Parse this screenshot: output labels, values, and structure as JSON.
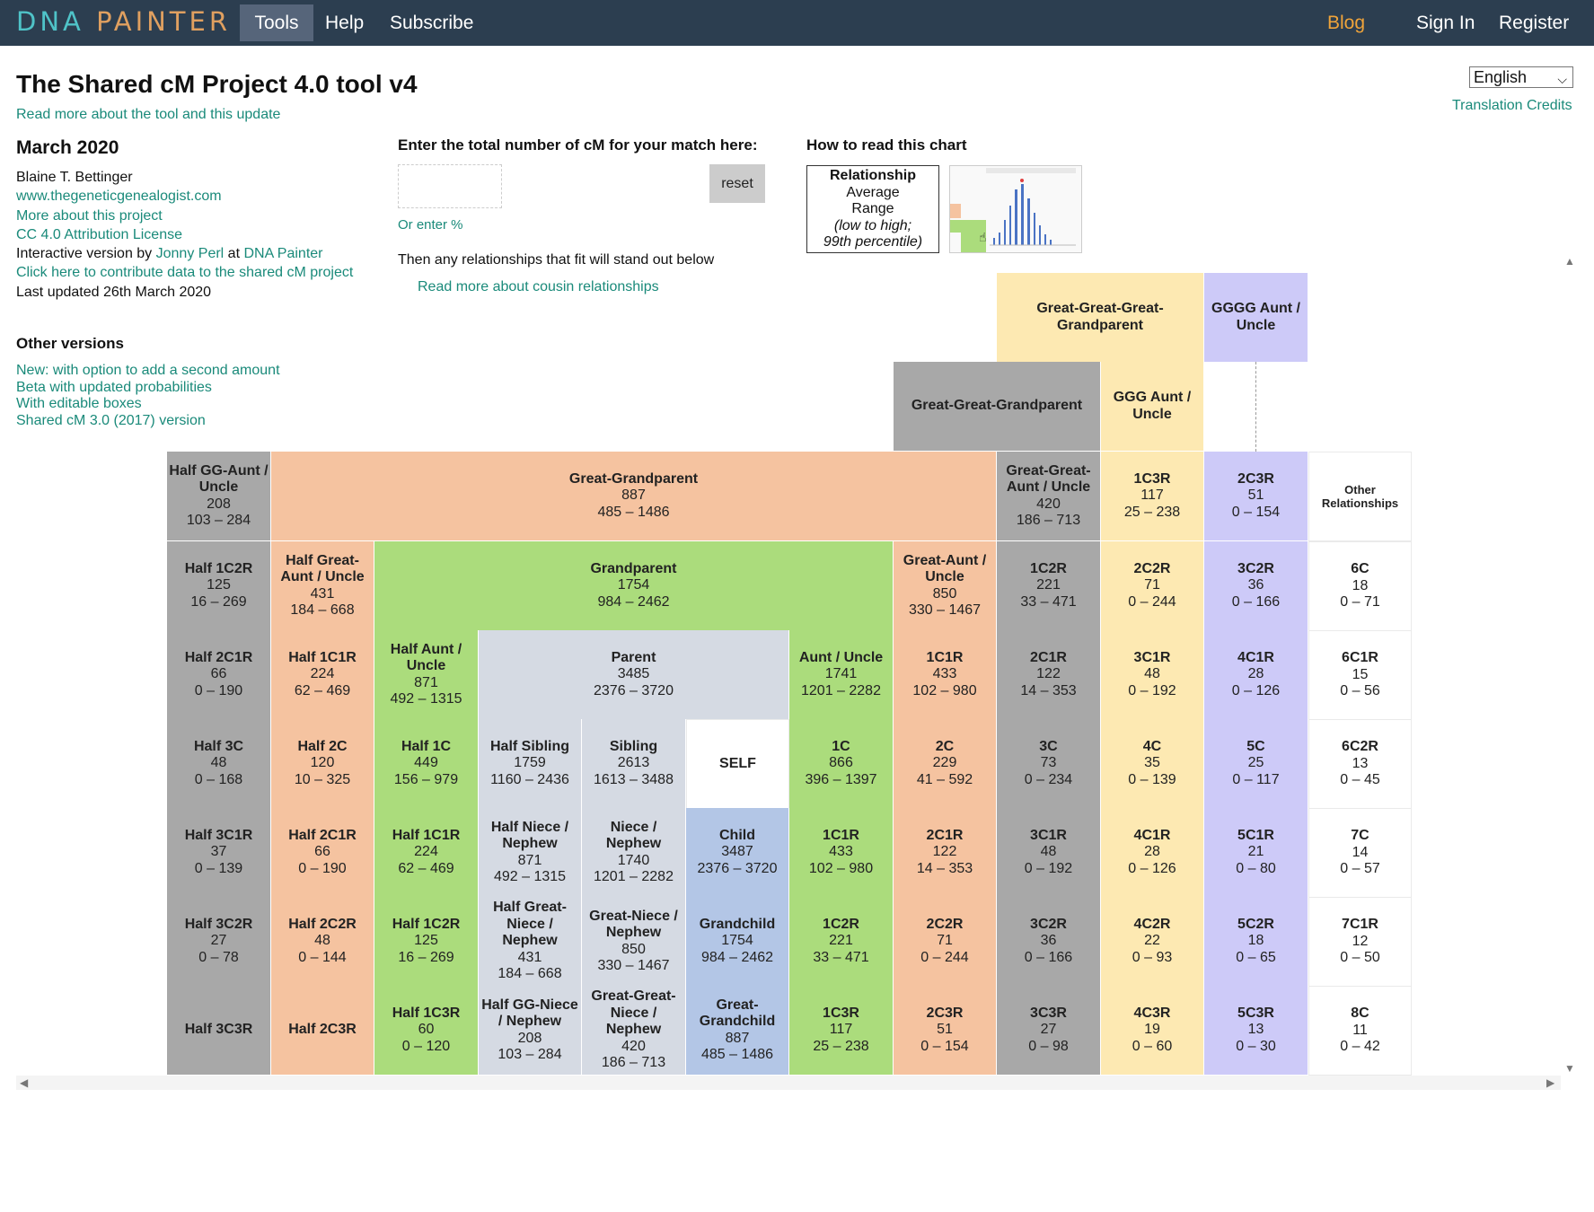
{
  "nav": {
    "brand_a": "DNA ",
    "brand_b": "PAINTER",
    "tools": "Tools",
    "help": "Help",
    "subscribe": "Subscribe",
    "blog": "Blog",
    "signin": "Sign In",
    "register": "Register"
  },
  "header": {
    "title": "The Shared cM Project 4.0 tool v4",
    "read_more": "Read more about the tool and this update",
    "language": "English",
    "translation_credits": "Translation Credits"
  },
  "info": {
    "date": "March 2020",
    "author": "Blaine T. Bettinger",
    "site": "www.thegeneticgenealogist.com",
    "more_about": "More about this project",
    "license": "CC 4.0 Attribution License",
    "interactive_prefix": "Interactive version by ",
    "interactive_author": "Jonny Perl",
    "interactive_at": " at ",
    "interactive_site": "DNA Painter",
    "contribute": "Click here to contribute data to the shared cM project",
    "updated": "Last updated 26th March 2020"
  },
  "other_versions": {
    "title": "Other versions",
    "items": [
      "New: with option to add a second amount",
      "Beta with updated probabilities",
      "With editable boxes",
      "Shared cM 3.0 (2017) version"
    ]
  },
  "entry": {
    "label": "Enter the total number of cM for your match here:",
    "value": "",
    "reset": "reset",
    "or_percent": "Or enter %",
    "then": "Then any relationships that fit will stand out below",
    "cousin_link": "Read more about cousin relationships"
  },
  "howto": {
    "title": "How to read this chart",
    "relationship": "Relationship",
    "average": "Average",
    "range": "Range",
    "note_1": "(low to high;",
    "note_2": "99th percentile)"
  },
  "grid": {
    "cells": [
      {
        "id": "gggg-grandparent",
        "name": "Great-Great-Great-Grandparent",
        "color": "#fde9b2"
      },
      {
        "id": "gggg-aunt",
        "name": "GGGG Aunt / Uncle",
        "color": "#cdcaf8"
      },
      {
        "id": "gg-grandparent",
        "name": "Great-Great-Grandparent",
        "color": "#a8a8a8"
      },
      {
        "id": "ggg-aunt",
        "name": "GGG Aunt / Uncle",
        "color": "#fde9b2"
      },
      {
        "id": "half-gg-aunt",
        "name": "Half GG-Aunt / Uncle",
        "avg": "208",
        "range": "103 – 284"
      },
      {
        "id": "great-grandparent",
        "name": "Great-Grandparent",
        "avg": "887",
        "range": "485 – 1486"
      },
      {
        "id": "gg-aunt",
        "name": "Great-Great-Aunt / Uncle",
        "avg": "420",
        "range": "186 – 713"
      },
      {
        "id": "1c3r-top",
        "name": "1C3R",
        "avg": "117",
        "range": "25 – 238"
      },
      {
        "id": "2c3r-top",
        "name": "2C3R",
        "avg": "51",
        "range": "0 – 154"
      },
      {
        "id": "other-rel",
        "name": "Other Relationships"
      },
      {
        "id": "half-1c2r",
        "name": "Half 1C2R",
        "avg": "125",
        "range": "16 – 269"
      },
      {
        "id": "half-great-aunt",
        "name": "Half Great-Aunt / Uncle",
        "avg": "431",
        "range": "184 – 668"
      },
      {
        "id": "grandparent",
        "name": "Grandparent",
        "avg": "1754",
        "range": "984 – 2462"
      },
      {
        "id": "great-aunt",
        "name": "Great-Aunt / Uncle",
        "avg": "850",
        "range": "330 – 1467"
      },
      {
        "id": "1c2r-top",
        "name": "1C2R",
        "avg": "221",
        "range": "33 – 471"
      },
      {
        "id": "2c2r-top",
        "name": "2C2R",
        "avg": "71",
        "range": "0 – 244"
      },
      {
        "id": "3c2r-top",
        "name": "3C2R",
        "avg": "36",
        "range": "0 – 166"
      },
      {
        "id": "6c",
        "name": "6C",
        "avg": "18",
        "range": "0 – 71"
      },
      {
        "id": "half-2c1r-top",
        "name": "Half 2C1R",
        "avg": "66",
        "range": "0 – 190"
      },
      {
        "id": "half-1c1r-top",
        "name": "Half 1C1R",
        "avg": "224",
        "range": "62 – 469"
      },
      {
        "id": "half-aunt",
        "name": "Half Aunt / Uncle",
        "avg": "871",
        "range": "492 – 1315"
      },
      {
        "id": "parent",
        "name": "Parent",
        "avg": "3485",
        "range": "2376 – 3720"
      },
      {
        "id": "aunt",
        "name": "Aunt / Uncle",
        "avg": "1741",
        "range": "1201 – 2282"
      },
      {
        "id": "1c1r-top",
        "name": "1C1R",
        "avg": "433",
        "range": "102 – 980"
      },
      {
        "id": "2c1r-top",
        "name": "2C1R",
        "avg": "122",
        "range": "14 – 353"
      },
      {
        "id": "3c1r-top",
        "name": "3C1R",
        "avg": "48",
        "range": "0 – 192"
      },
      {
        "id": "4c1r-top",
        "name": "4C1R",
        "avg": "28",
        "range": "0 – 126"
      },
      {
        "id": "6c1r",
        "name": "6C1R",
        "avg": "15",
        "range": "0 – 56"
      },
      {
        "id": "half-3c",
        "name": "Half 3C",
        "avg": "48",
        "range": "0 – 168"
      },
      {
        "id": "half-2c",
        "name": "Half 2C",
        "avg": "120",
        "range": "10 – 325"
      },
      {
        "id": "half-1c",
        "name": "Half 1C",
        "avg": "449",
        "range": "156 – 979"
      },
      {
        "id": "half-sibling",
        "name": "Half Sibling",
        "avg": "1759",
        "range": "1160 – 2436"
      },
      {
        "id": "sibling",
        "name": "Sibling",
        "avg": "2613",
        "range": "1613 – 3488"
      },
      {
        "id": "self",
        "name": "SELF"
      },
      {
        "id": "1c",
        "name": "1C",
        "avg": "866",
        "range": "396 – 1397"
      },
      {
        "id": "2c",
        "name": "2C",
        "avg": "229",
        "range": "41 – 592"
      },
      {
        "id": "3c",
        "name": "3C",
        "avg": "73",
        "range": "0 – 234"
      },
      {
        "id": "4c",
        "name": "4C",
        "avg": "35",
        "range": "0 – 139"
      },
      {
        "id": "5c",
        "name": "5C",
        "avg": "25",
        "range": "0 – 117"
      },
      {
        "id": "6c2r",
        "name": "6C2R",
        "avg": "13",
        "range": "0 – 45"
      },
      {
        "id": "half-3c1r",
        "name": "Half 3C1R",
        "avg": "37",
        "range": "0 – 139"
      },
      {
        "id": "half-2c1r",
        "name": "Half 2C1R",
        "avg": "66",
        "range": "0 – 190"
      },
      {
        "id": "half-1c1r",
        "name": "Half 1C1R",
        "avg": "224",
        "range": "62 – 469"
      },
      {
        "id": "half-niece",
        "name": "Half Niece / Nephew",
        "avg": "871",
        "range": "492 – 1315"
      },
      {
        "id": "niece",
        "name": "Niece / Nephew",
        "avg": "1740",
        "range": "1201 – 2282"
      },
      {
        "id": "child",
        "name": "Child",
        "avg": "3487",
        "range": "2376 – 3720"
      },
      {
        "id": "1c1r",
        "name": "1C1R",
        "avg": "433",
        "range": "102 – 980"
      },
      {
        "id": "2c1r",
        "name": "2C1R",
        "avg": "122",
        "range": "14 – 353"
      },
      {
        "id": "3c1r",
        "name": "3C1R",
        "avg": "48",
        "range": "0 – 192"
      },
      {
        "id": "4c1r",
        "name": "4C1R",
        "avg": "28",
        "range": "0 – 126"
      },
      {
        "id": "5c1r",
        "name": "5C1R",
        "avg": "21",
        "range": "0 – 80"
      },
      {
        "id": "7c",
        "name": "7C",
        "avg": "14",
        "range": "0 – 57"
      },
      {
        "id": "half-3c2r",
        "name": "Half 3C2R",
        "avg": "27",
        "range": "0 – 78"
      },
      {
        "id": "half-2c2r",
        "name": "Half 2C2R",
        "avg": "48",
        "range": "0 – 144"
      },
      {
        "id": "half-1c2r-b",
        "name": "Half 1C2R",
        "avg": "125",
        "range": "16 – 269"
      },
      {
        "id": "half-great-niece",
        "name": "Half Great-Niece / Nephew",
        "avg": "431",
        "range": "184 – 668"
      },
      {
        "id": "great-niece",
        "name": "Great-Niece / Nephew",
        "avg": "850",
        "range": "330 – 1467"
      },
      {
        "id": "grandchild",
        "name": "Grandchild",
        "avg": "1754",
        "range": "984 – 2462"
      },
      {
        "id": "1c2r",
        "name": "1C2R",
        "avg": "221",
        "range": "33 – 471"
      },
      {
        "id": "2c2r",
        "name": "2C2R",
        "avg": "71",
        "range": "0 – 244"
      },
      {
        "id": "3c2r",
        "name": "3C2R",
        "avg": "36",
        "range": "0 – 166"
      },
      {
        "id": "4c2r",
        "name": "4C2R",
        "avg": "22",
        "range": "0 – 93"
      },
      {
        "id": "5c2r",
        "name": "5C2R",
        "avg": "18",
        "range": "0 – 65"
      },
      {
        "id": "7c1r",
        "name": "7C1R",
        "avg": "12",
        "range": "0 – 50"
      },
      {
        "id": "half-3c3r",
        "name": "Half 3C3R"
      },
      {
        "id": "half-2c3r",
        "name": "Half 2C3R"
      },
      {
        "id": "half-1c3r",
        "name": "Half 1C3R",
        "avg": "60",
        "range": "0 – 120"
      },
      {
        "id": "half-gg-niece",
        "name": "Half GG-Niece / Nephew",
        "avg": "208",
        "range": "103 – 284"
      },
      {
        "id": "gg-niece",
        "name": "Great-Great-Niece / Nephew",
        "avg": "420",
        "range": "186 – 713"
      },
      {
        "id": "great-grandchild",
        "name": "Great-Grandchild",
        "avg": "887",
        "range": "485 – 1486"
      },
      {
        "id": "1c3r",
        "name": "1C3R",
        "avg": "117",
        "range": "25 – 238"
      },
      {
        "id": "2c3r",
        "name": "2C3R",
        "avg": "51",
        "range": "0 – 154"
      },
      {
        "id": "3c3r",
        "name": "3C3R",
        "avg": "27",
        "range": "0 – 98"
      },
      {
        "id": "4c3r",
        "name": "4C3R",
        "avg": "19",
        "range": "0 – 60"
      },
      {
        "id": "5c3r",
        "name": "5C3R",
        "avg": "13",
        "range": "0 – 30"
      },
      {
        "id": "8c",
        "name": "8C",
        "avg": "11",
        "range": "0 – 42"
      }
    ]
  }
}
